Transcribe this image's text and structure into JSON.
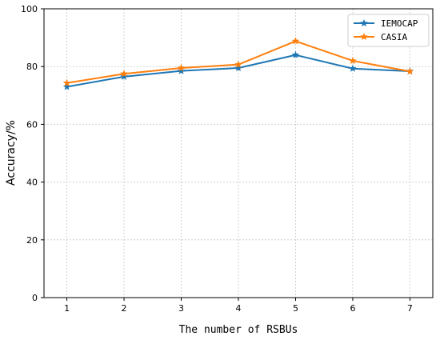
{
  "chart_data": {
    "type": "line",
    "xlabel": "The number of RSBUs",
    "ylabel": "Accuracy/%",
    "x": [
      1,
      2,
      3,
      4,
      5,
      6,
      7
    ],
    "xticks": [
      "1",
      "2",
      "3",
      "4",
      "5",
      "6",
      "7"
    ],
    "xlim": [
      0.6,
      7.4
    ],
    "ylim": [
      0,
      100
    ],
    "yticks": [
      "0",
      "20",
      "40",
      "60",
      "80",
      "100"
    ],
    "grid": true,
    "legend_position": "top-right",
    "series": [
      {
        "name": "IEMOCAP",
        "color": "#1f77b4",
        "marker": "star",
        "values": [
          73.0,
          76.5,
          78.5,
          79.5,
          84.0,
          79.3,
          78.4
        ]
      },
      {
        "name": "CASIA",
        "color": "#ff7f0e",
        "marker": "star",
        "values": [
          74.3,
          77.5,
          79.5,
          80.7,
          88.8,
          82.0,
          78.3
        ]
      }
    ]
  }
}
